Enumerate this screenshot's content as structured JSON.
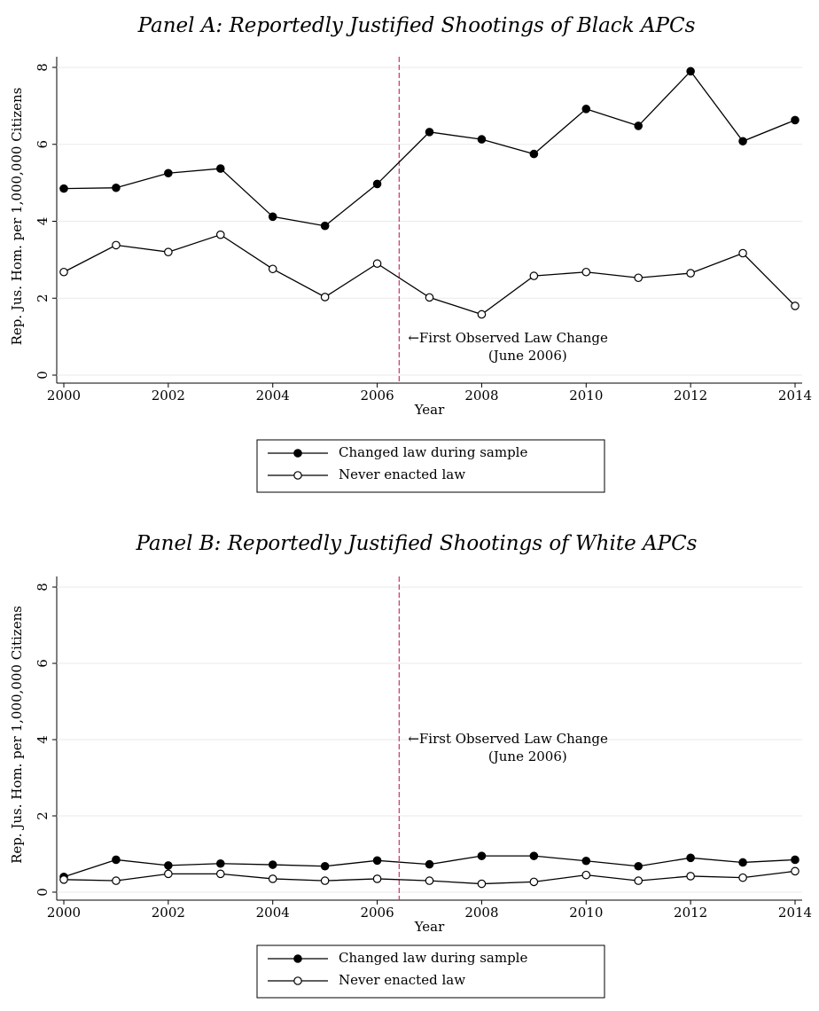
{
  "chart_data": [
    {
      "type": "line",
      "title": "Panel A: Reportedly Justified Shootings of Black APCs",
      "xlabel": "Year",
      "ylabel": "Rep. Jus. Hom. per 1,000,000 Citizens",
      "x": [
        2000,
        2001,
        2002,
        2003,
        2004,
        2005,
        2006,
        2007,
        2008,
        2009,
        2010,
        2011,
        2012,
        2013,
        2014
      ],
      "series": [
        {
          "name": "Changed law during sample",
          "color": "#000000",
          "marker": "filled",
          "values": [
            4.85,
            4.87,
            5.25,
            5.37,
            4.12,
            3.88,
            4.97,
            6.32,
            6.13,
            5.75,
            6.92,
            6.48,
            7.9,
            6.08,
            6.63
          ]
        },
        {
          "name": "Never enacted law",
          "color": "#000000",
          "marker": "hollow",
          "values": [
            2.68,
            3.38,
            3.2,
            3.65,
            2.76,
            2.03,
            2.9,
            2.02,
            1.58,
            2.58,
            2.68,
            2.53,
            2.65,
            3.17,
            1.8
          ]
        }
      ],
      "xlim": [
        2000,
        2014
      ],
      "xticks": [
        2000,
        2002,
        2004,
        2006,
        2008,
        2010,
        2012,
        2014
      ],
      "ylim": [
        0,
        8
      ],
      "yticks": [
        0,
        2,
        4,
        6,
        8
      ],
      "grid": true,
      "vline": 2006.42,
      "vline_color": "#c8326e",
      "annotation": [
        "←First Observed Law Change",
        "(June 2006)"
      ]
    },
    {
      "type": "line",
      "title": "Panel B: Reportedly Justified Shootings of White APCs",
      "xlabel": "Year",
      "ylabel": "Rep. Jus. Hom. per 1,000,000 Citizens",
      "x": [
        2000,
        2001,
        2002,
        2003,
        2004,
        2005,
        2006,
        2007,
        2008,
        2009,
        2010,
        2011,
        2012,
        2013,
        2014
      ],
      "series": [
        {
          "name": "Changed law during sample",
          "color": "#000000",
          "marker": "filled",
          "values": [
            0.4,
            0.85,
            0.7,
            0.75,
            0.72,
            0.68,
            0.83,
            0.73,
            0.95,
            0.95,
            0.82,
            0.68,
            0.9,
            0.78,
            0.85
          ]
        },
        {
          "name": "Never enacted law",
          "color": "#000000",
          "marker": "hollow",
          "values": [
            0.33,
            0.3,
            0.48,
            0.48,
            0.35,
            0.3,
            0.35,
            0.3,
            0.22,
            0.27,
            0.45,
            0.3,
            0.42,
            0.38,
            0.55
          ]
        }
      ],
      "xlim": [
        2000,
        2014
      ],
      "xticks": [
        2000,
        2002,
        2004,
        2006,
        2008,
        2010,
        2012,
        2014
      ],
      "ylim": [
        0,
        8
      ],
      "yticks": [
        0,
        2,
        4,
        6,
        8
      ],
      "grid": true,
      "vline": 2006.42,
      "vline_color": "#c8326e",
      "annotation": [
        "←First Observed Law Change",
        "(June 2006)"
      ]
    }
  ]
}
